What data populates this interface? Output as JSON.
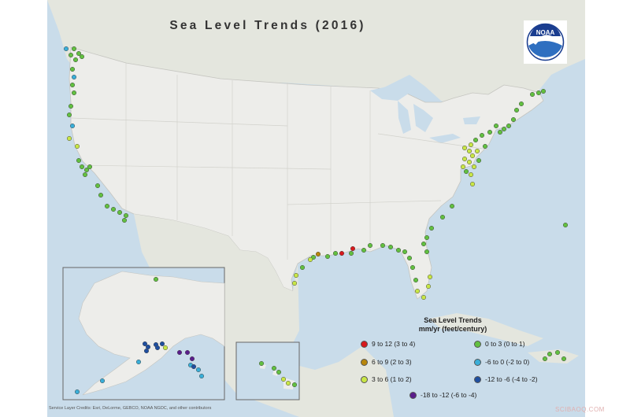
{
  "map": {
    "title": "Sea Level Trends (2016)",
    "logo_text": "NOAA",
    "credits": "Service Layer Credits: Esri, DeLorme, GEBCO, NOAA NGDC, and other contributors",
    "watermark": "SCIBAOQ.COM"
  },
  "legend": {
    "title_line1": "Sea Level Trends",
    "title_line2": "mm/yr (feet/century)",
    "items": [
      {
        "label": "9 to 12 (3 to 4)",
        "color": "#d7191c"
      },
      {
        "label": "6 to 9 (2 to 3)",
        "color": "#b8860b"
      },
      {
        "label": "3 to 6 (1 to 2)",
        "color": "#c8e646"
      },
      {
        "label": "0 to 3 (0 to 1)",
        "color": "#62c040"
      },
      {
        "label": "-6 to 0 (-2 to 0)",
        "color": "#3aaed8"
      },
      {
        "label": "-12 to -6 (-4 to -2)",
        "color": "#1f4fa0"
      },
      {
        "label": "-18 to -12 (-6 to -4)",
        "color": "#5a1e8c"
      }
    ]
  }
}
